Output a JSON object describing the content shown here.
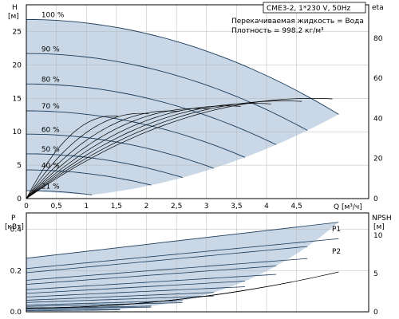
{
  "header": {
    "model": "CME3-2, 1*230 V, 50Hz",
    "liquid": "Перекачиваемая жидкость = Вода",
    "density": "Плотность = 998.2 кг/м³"
  },
  "colors": {
    "band": "#c9d7e6",
    "curve": "#1c3d5c",
    "grid": "#b8b8b8",
    "frame": "#000000"
  },
  "chart_data": [
    {
      "type": "line",
      "name": "head_chart",
      "labels": {
        "y_axis": "H",
        "y_unit": "[м]",
        "x_axis": "Q [м³/ч]",
        "right_axis": "eta"
      },
      "xlim": [
        0,
        5.7
      ],
      "ylim": [
        0,
        29
      ],
      "y2lim": [
        0,
        96.7
      ],
      "x_ticks": [
        "0",
        "0,5",
        "1",
        "1,5",
        "2",
        "2,5",
        "3",
        "3,5",
        "4",
        "4,5"
      ],
      "x_tick_values": [
        0,
        0.5,
        1,
        1.5,
        2,
        2.5,
        3,
        3.5,
        4,
        4.5
      ],
      "y_ticks": [
        "0",
        "5",
        "10",
        "15",
        "20",
        "25"
      ],
      "y_tick_values": [
        0,
        5,
        10,
        15,
        20,
        25
      ],
      "y2_ticks": [
        "0",
        "20",
        "40",
        "60",
        "80"
      ],
      "y2_tick_values": [
        0,
        20,
        40,
        60,
        80
      ],
      "speed_curves": [
        {
          "name": "100 %",
          "speed": 1.0
        },
        {
          "name": "90 %",
          "speed": 0.9
        },
        {
          "name": "80 %",
          "speed": 0.8
        },
        {
          "name": "70 %",
          "speed": 0.7
        },
        {
          "name": "60 %",
          "speed": 0.6
        },
        {
          "name": "50 %",
          "speed": 0.5
        },
        {
          "name": "40 %",
          "speed": 0.4
        },
        {
          "name": "21 %",
          "speed": 0.21
        }
      ],
      "head_model": {
        "h0": 26.8,
        "qmax": 5.2,
        "hmax_end": 12.6
      },
      "eta_model": {
        "peak": 48,
        "q_peak": 3.8
      }
    },
    {
      "type": "line",
      "name": "power_chart",
      "labels": {
        "y_axis": "P",
        "y_unit": "[кВт]",
        "right_axis": "NPSH",
        "right_unit": "[м]"
      },
      "xlim": [
        0,
        5.7
      ],
      "ylim": [
        0,
        0.48
      ],
      "y2lim": [
        0,
        12.9
      ],
      "y_ticks": [
        "0.0",
        "0.2",
        "0.4"
      ],
      "y_tick_values": [
        0,
        0.2,
        0.4
      ],
      "y2_ticks": [
        "0",
        "5",
        "10"
      ],
      "y2_tick_values": [
        0,
        5,
        10
      ],
      "series_labels": [
        "P1",
        "P2"
      ],
      "p1_model": {
        "p0": 0.26,
        "pmax": 0.435
      },
      "p2_model": {
        "p0": 0.21,
        "pmax": 0.355
      },
      "npsh_model": {
        "n0": 0.5,
        "nmax": 5.2
      }
    }
  ]
}
